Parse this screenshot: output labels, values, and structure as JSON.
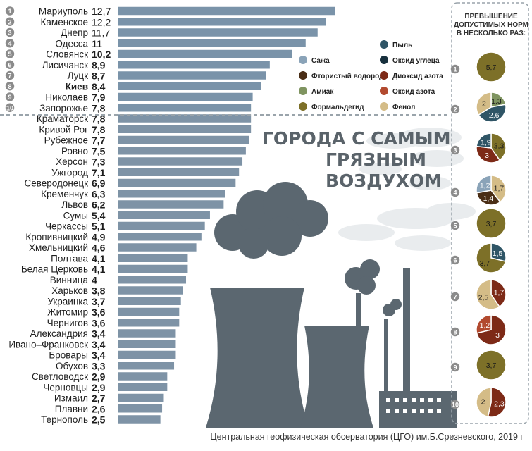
{
  "headline": [
    "ГОРОДА С САМЫМ",
    "ГРЯЗНЫМ",
    "ВОЗДУХОМ"
  ],
  "source": "Центральная геофизическая обсерватория (ЦГО) им.Б.Срезневского, 2019 г",
  "excess_panel": {
    "title": [
      "ПРЕВЫШЕНИЕ",
      "ДОПУСТИМЫХ НОРМ",
      "В НЕСКОЛЬКО РАЗ:"
    ]
  },
  "colors": {
    "bar": "#7e93a6",
    "bar_top10": "#7a93a9",
    "text": "#1e1e1e",
    "value": "#111111",
    "rank_badge": "#8b8b8b",
    "factory": "#5b6770",
    "cloud": "#e9ecee",
    "divider": "#9aa4ab",
    "Сажа": "#8aa3b8",
    "Пыль": "#2f5566",
    "Фтористый водород": "#4a2e16",
    "Оксид углеца": "#17303d",
    "Амиак": "#7f9460",
    "Диоксид азота": "#7d2a17",
    "Формальдегид": "#7d7028",
    "Оксид азота": "#b24a2f",
    "Фенол": "#d4bc87"
  },
  "chart_data": {
    "type": "bar",
    "orientation": "horizontal",
    "categories": [
      "Мариуполь",
      "Каменское",
      "Днепр",
      "Одесса",
      "Словянск",
      "Лисичанск",
      "Луцк",
      "Киев",
      "Николаев",
      "Запорожье",
      "Краматорск",
      "Кривой Рог",
      "Рубежное",
      "Ровно",
      "Херсон",
      "Ужгород",
      "Северодонецк",
      "Кременчук",
      "Львов",
      "Сумы",
      "Черкассы",
      "Кропивницкий",
      "Хмельницкий",
      "Полтава",
      "Белая Церковь",
      "Винница",
      "Харьков",
      "Украинка",
      "Житомир",
      "Чернигов",
      "Александрия",
      "Ивано–Франковск",
      "Бровары",
      "Обухов",
      "Светловодск",
      "Черновцы",
      "Измаил",
      "Плавни",
      "Тернополь"
    ],
    "value_labels": [
      "12,7",
      "12,2",
      "11,7",
      "11",
      "10,2",
      "8,9",
      "8,7",
      "8,4",
      "7,9",
      "7,8",
      "7,8",
      "7,8",
      "7,7",
      "7,5",
      "7,3",
      "7,1",
      "6,9",
      "6,3",
      "6,2",
      "5,4",
      "5,1",
      "4,9",
      "4,6",
      "4,1",
      "4,1",
      "4",
      "3,8",
      "3,7",
      "3,6",
      "3,6",
      "3,4",
      "3,4",
      "3,4",
      "3,3",
      "2,9",
      "2,9",
      "2,7",
      "2,6",
      "2,5"
    ],
    "values": [
      12.7,
      12.2,
      11.7,
      11,
      10.2,
      8.9,
      8.7,
      8.4,
      7.9,
      7.8,
      7.8,
      7.8,
      7.7,
      7.5,
      7.3,
      7.1,
      6.9,
      6.3,
      6.2,
      5.4,
      5.1,
      4.9,
      4.6,
      4.1,
      4.1,
      4,
      3.8,
      3.7,
      3.6,
      3.6,
      3.4,
      3.4,
      3.4,
      3.3,
      2.9,
      2.9,
      2.7,
      2.6,
      2.5
    ],
    "ranks": [
      "1",
      "2",
      "3",
      "4",
      "5",
      "6",
      "7",
      "8",
      "9",
      "10"
    ],
    "xlim": [
      0,
      12.7
    ],
    "legend": {
      "left": [
        "Сажа",
        "Фтористый водород",
        "Амиак",
        "Формальдегид"
      ],
      "right": [
        "Пыль",
        "Оксид углеца",
        "Диоксид азота",
        "Оксид азота",
        "Фенол"
      ]
    },
    "excess": [
      {
        "rank": "1",
        "slices": [
          {
            "pollutant": "Формальдегид",
            "value": 5.7,
            "label": "5,7"
          }
        ]
      },
      {
        "rank": "2",
        "slices": [
          {
            "pollutant": "Амиак",
            "value": 1.3,
            "label": "1,3"
          },
          {
            "pollutant": "Пыль",
            "value": 2.6,
            "label": "2,6"
          },
          {
            "pollutant": "Фенол",
            "value": 2,
            "label": "2"
          }
        ]
      },
      {
        "rank": "3",
        "slices": [
          {
            "pollutant": "Формальдегид",
            "value": 3.3,
            "label": "3,3"
          },
          {
            "pollutant": "Диоксид азота",
            "value": 3,
            "label": "3"
          },
          {
            "pollutant": "Пыль",
            "value": 1.9,
            "label": "1,9"
          }
        ]
      },
      {
        "rank": "4",
        "slices": [
          {
            "pollutant": "Фенол",
            "value": 1.7,
            "label": "1,7"
          },
          {
            "pollutant": "Фтористый водород",
            "value": 1.4,
            "label": "1,4"
          },
          {
            "pollutant": "Сажа",
            "value": 1.2,
            "label": "1,2"
          }
        ]
      },
      {
        "rank": "5",
        "slices": [
          {
            "pollutant": "Формальдегид",
            "value": 3.7,
            "label": "3,7"
          }
        ]
      },
      {
        "rank": "6",
        "slices": [
          {
            "pollutant": "Пыль",
            "value": 1.5,
            "label": "1,5"
          },
          {
            "pollutant": "Формальдегид",
            "value": 3.7,
            "label": "3,7"
          }
        ]
      },
      {
        "rank": "7",
        "slices": [
          {
            "pollutant": "Диоксид азота",
            "value": 1.7,
            "label": "1,7"
          },
          {
            "pollutant": "Фенол",
            "value": 2.5,
            "label": "2,5"
          }
        ]
      },
      {
        "rank": "8",
        "slices": [
          {
            "pollutant": "Диоксид азота",
            "value": 3,
            "label": "3"
          },
          {
            "pollutant": "Оксид азота",
            "value": 1.2,
            "label": "1,2"
          }
        ]
      },
      {
        "rank": "9",
        "slices": [
          {
            "pollutant": "Формальдегид",
            "value": 3.7,
            "label": "3,7"
          }
        ]
      },
      {
        "rank": "10",
        "slices": [
          {
            "pollutant": "Диоксид азота",
            "value": 2.3,
            "label": "2,3"
          },
          {
            "pollutant": "Фенол",
            "value": 2,
            "label": "2"
          }
        ]
      }
    ]
  }
}
